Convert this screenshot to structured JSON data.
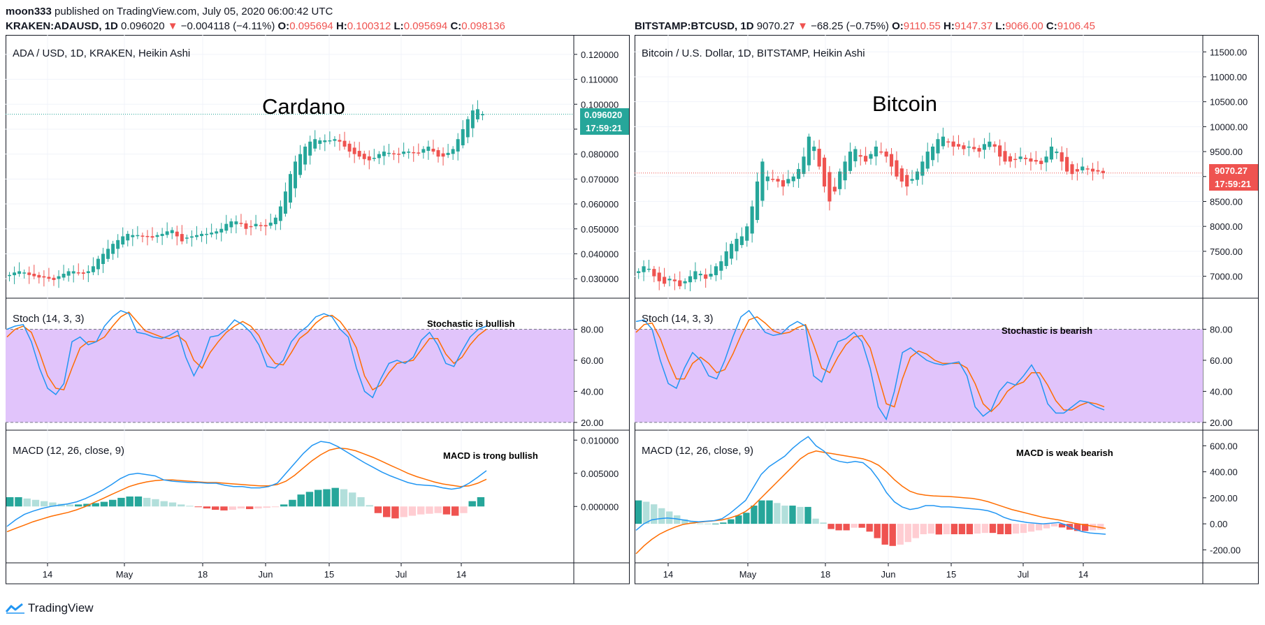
{
  "header": {
    "author": "moon333",
    "published": "published on TradingView.com, July 05, 2020 06:00:42 UTC"
  },
  "footer": {
    "brand": "TradingView"
  },
  "colors": {
    "up": "#26a69a",
    "down": "#ef5350",
    "stoch_k": "#2196f3",
    "stoch_d": "#ff6d00",
    "stoch_band": "#e1c4fb",
    "hist_up_strong": "#26a69a",
    "hist_up_weak": "#b2dfdb",
    "hist_down_strong": "#ef5350",
    "hist_down_weak": "#ffcdd2"
  },
  "charts": [
    {
      "ticker_line": {
        "symbol": "KRAKEN:ADAUSD, 1D",
        "last": "0.096020",
        "change": "−0.004118 (−4.11%)",
        "o_label": "O:",
        "o": "0.095694",
        "h_label": "H:",
        "h": "0.100312",
        "l_label": "L:",
        "l": "0.095694",
        "c_label": "C:",
        "c": "0.098136"
      },
      "chart_title": "ADA / USD, 1D, KRAKEN, Heikin Ashi",
      "annotation": "Cardano",
      "price_badge": "0.096020",
      "countdown": "17:59:21",
      "stoch_label": "Stoch (14, 3, 3)",
      "stoch_note": "Stochastic is bullish",
      "macd_label": "MACD (12, 26, close, 9)",
      "macd_note": "MACD is trong bullish",
      "x_ticks": [
        "14",
        "May",
        "18",
        "Jun",
        "15",
        "Jul",
        "14"
      ]
    },
    {
      "ticker_line": {
        "symbol": "BITSTAMP:BTCUSD, 1D",
        "last": "9070.27",
        "change": "−68.25 (−0.75%)",
        "o_label": "O:",
        "o": "9110.55",
        "h_label": "H:",
        "h": "9147.37",
        "l_label": "L:",
        "l": "9066.00",
        "c_label": "C:",
        "c": "9106.45"
      },
      "chart_title": "Bitcoin / U.S. Dollar, 1D, BITSTAMP, Heikin Ashi",
      "annotation": "Bitcoin",
      "price_badge": "9070.27",
      "countdown": "17:59:21",
      "stoch_label": "Stoch (14, 3, 3)",
      "stoch_note": "Stochastic is bearish",
      "macd_label": "MACD (12, 26, close, 9)",
      "macd_note": "MACD is weak bearish",
      "x_ticks": [
        "14",
        "May",
        "18",
        "Jun",
        "15",
        "Jul",
        "14"
      ]
    }
  ],
  "chart_data": [
    {
      "type": "candlestick",
      "panel": "price",
      "ylim": [
        0.025,
        0.125
      ],
      "y_ticks": [
        "0.030000",
        "0.040000",
        "0.050000",
        "0.060000",
        "0.070000",
        "0.080000",
        "0.090000",
        "0.100000",
        "0.110000",
        "0.120000"
      ],
      "current_price": 0.09602,
      "close": [
        0.0315,
        0.0325,
        0.033,
        0.0325,
        0.0315,
        0.031,
        0.0305,
        0.0305,
        0.03,
        0.0295,
        0.031,
        0.032,
        0.033,
        0.033,
        0.0325,
        0.032,
        0.033,
        0.035,
        0.038,
        0.04,
        0.042,
        0.044,
        0.0455,
        0.047,
        0.048,
        0.0475,
        0.0475,
        0.047,
        0.047,
        0.0465,
        0.0475,
        0.048,
        0.049,
        0.0495,
        0.047,
        0.045,
        0.0465,
        0.047,
        0.0475,
        0.048,
        0.048,
        0.0485,
        0.049,
        0.05,
        0.052,
        0.053,
        0.053,
        0.052,
        0.05,
        0.051,
        0.052,
        0.0515,
        0.051,
        0.0525,
        0.0545,
        0.059,
        0.065,
        0.072,
        0.077,
        0.08,
        0.083,
        0.085,
        0.086,
        0.0855,
        0.0855,
        0.0855,
        0.086,
        0.085,
        0.083,
        0.081,
        0.08,
        0.079,
        0.078,
        0.0775,
        0.0785,
        0.08,
        0.081,
        0.0805,
        0.08,
        0.08,
        0.081,
        0.081,
        0.0805,
        0.0805,
        0.082,
        0.083,
        0.081,
        0.079,
        0.079,
        0.0805,
        0.082,
        0.086,
        0.09,
        0.094,
        0.0975,
        0.098,
        0.096
      ],
      "stoch": {
        "ylim": [
          15,
          100
        ],
        "bands": [
          20,
          80
        ],
        "y_ticks": [
          "20.00",
          "40.00",
          "60.00",
          "80.00"
        ],
        "k": [
          80,
          82,
          83,
          72,
          55,
          42,
          38,
          45,
          72,
          75,
          70,
          72,
          82,
          88,
          92,
          90,
          78,
          77,
          75,
          74,
          76,
          79,
          62,
          50,
          60,
          75,
          76,
          80,
          86,
          83,
          78,
          70,
          56,
          55,
          60,
          72,
          78,
          82,
          88,
          90,
          88,
          80,
          75,
          55,
          40,
          36,
          48,
          58,
          60,
          58,
          62,
          73,
          78,
          70,
          58,
          56,
          66,
          75,
          80,
          82
        ],
        "d": [
          75,
          80,
          82,
          78,
          65,
          50,
          42,
          41,
          55,
          68,
          72,
          72,
          75,
          82,
          88,
          91,
          85,
          79,
          77,
          75,
          74,
          76,
          72,
          60,
          55,
          65,
          72,
          78,
          82,
          85,
          82,
          76,
          65,
          58,
          57,
          65,
          74,
          78,
          84,
          88,
          89,
          85,
          78,
          68,
          50,
          41,
          44,
          52,
          58,
          59,
          60,
          67,
          74,
          74,
          64,
          58,
          62,
          70,
          76,
          80
        ]
      },
      "macd": {
        "ylim": [
          -0.0085,
          0.0115
        ],
        "y_ticks": [
          "0.000000",
          "0.005000",
          "0.010000"
        ],
        "macd": [
          -0.003,
          -0.002,
          -0.0012,
          -0.0007,
          -0.0003,
          0.0,
          0.0002,
          0.0004,
          0.0007,
          0.0012,
          0.0018,
          0.0025,
          0.0033,
          0.0042,
          0.0048,
          0.005,
          0.0048,
          0.0046,
          0.004,
          0.0038,
          0.0037,
          0.0036,
          0.0036,
          0.0035,
          0.0035,
          0.0032,
          0.003,
          0.003,
          0.0028,
          0.0028,
          0.003,
          0.0035,
          0.005,
          0.0065,
          0.008,
          0.0092,
          0.0098,
          0.0096,
          0.009,
          0.0082,
          0.0074,
          0.0066,
          0.0059,
          0.0052,
          0.0046,
          0.0041,
          0.0036,
          0.0033,
          0.0032,
          0.0031,
          0.0028,
          0.0026,
          0.0028,
          0.0035,
          0.0044,
          0.0054
        ],
        "signal": [
          -0.0038,
          -0.0033,
          -0.0028,
          -0.0023,
          -0.0019,
          -0.0015,
          -0.0012,
          -0.0009,
          -0.0005,
          0.0,
          0.0006,
          0.0012,
          0.0018,
          0.0024,
          0.003,
          0.0034,
          0.0037,
          0.0039,
          0.004,
          0.004,
          0.0039,
          0.0038,
          0.0037,
          0.0036,
          0.0036,
          0.0035,
          0.0034,
          0.0033,
          0.0032,
          0.0031,
          0.0031,
          0.0033,
          0.0038,
          0.0047,
          0.0058,
          0.0069,
          0.0078,
          0.0085,
          0.0088,
          0.0087,
          0.0084,
          0.0079,
          0.0074,
          0.0068,
          0.0062,
          0.0056,
          0.005,
          0.0045,
          0.0041,
          0.0037,
          0.0034,
          0.0032,
          0.003,
          0.0031,
          0.0035,
          0.0041
        ],
        "hist": [
          0.0014,
          0.0014,
          0.0012,
          0.001,
          0.0008,
          0.0006,
          0.0004,
          0.0003,
          0.0003,
          0.0004,
          0.0005,
          0.0007,
          0.001,
          0.0013,
          0.0015,
          0.0015,
          0.0013,
          0.0011,
          0.0008,
          0.0006,
          0.0003,
          0.0001,
          -0.0001,
          -0.0003,
          -0.0005,
          -0.0006,
          -0.0005,
          -0.0003,
          -0.0004,
          -0.0003,
          -0.0002,
          -0.0001,
          0.0003,
          0.001,
          0.0018,
          0.0022,
          0.0025,
          0.0026,
          0.0028,
          0.0026,
          0.0021,
          0.0014,
          0.0002,
          -0.001,
          -0.0016,
          -0.0018,
          -0.0016,
          -0.0014,
          -0.0012,
          -0.0011,
          -0.001,
          -0.0012,
          -0.0014,
          -0.001,
          0.0008,
          0.0014
        ]
      }
    },
    {
      "type": "candlestick",
      "panel": "price",
      "ylim": [
        6700,
        11700
      ],
      "y_ticks": [
        "7000.00",
        "7500.00",
        "8000.00",
        "8500.00",
        "9000.00",
        "9500.00",
        "10000.00",
        "10500.00",
        "11000.00",
        "11500.00"
      ],
      "current_price": 9070.27,
      "close": [
        7100,
        7200,
        7150,
        7000,
        6900,
        6850,
        6950,
        6900,
        6800,
        6900,
        7000,
        7100,
        7050,
        6950,
        7050,
        7200,
        7300,
        7500,
        7650,
        7750,
        7800,
        8000,
        8400,
        8900,
        9300,
        9000,
        8950,
        8900,
        8800,
        8950,
        9000,
        9150,
        9400,
        9800,
        9600,
        9200,
        8800,
        8500,
        8700,
        9100,
        9300,
        9500,
        9550,
        9400,
        9300,
        9450,
        9600,
        9500,
        9400,
        9200,
        9000,
        8900,
        8800,
        8950,
        9100,
        9300,
        9500,
        9600,
        9750,
        9800,
        9700,
        9600,
        9600,
        9550,
        9600,
        9550,
        9500,
        9650,
        9700,
        9600,
        9400,
        9300,
        9300,
        9350,
        9400,
        9350,
        9300,
        9300,
        9250,
        9400,
        9600,
        9500,
        9300,
        9100,
        9050,
        9100,
        9200,
        9150,
        9100,
        9100,
        9070
      ],
      "stoch": {
        "ylim": [
          15,
          100
        ],
        "bands": [
          20,
          80
        ],
        "y_ticks": [
          "20.00",
          "40.00",
          "60.00",
          "80.00"
        ],
        "k": [
          85,
          86,
          80,
          60,
          45,
          42,
          55,
          65,
          60,
          50,
          48,
          60,
          75,
          88,
          92,
          85,
          78,
          76,
          77,
          82,
          85,
          82,
          50,
          46,
          60,
          72,
          74,
          78,
          72,
          55,
          30,
          22,
          40,
          65,
          68,
          64,
          60,
          58,
          57,
          58,
          59,
          50,
          30,
          24,
          28,
          40,
          46,
          44,
          50,
          57,
          48,
          32,
          26,
          26,
          30,
          34,
          33,
          30,
          28
        ],
        "d": [
          78,
          83,
          84,
          74,
          60,
          48,
          48,
          58,
          62,
          58,
          52,
          54,
          64,
          76,
          86,
          88,
          84,
          79,
          77,
          78,
          81,
          83,
          70,
          55,
          52,
          62,
          70,
          75,
          76,
          68,
          50,
          32,
          30,
          48,
          62,
          66,
          64,
          60,
          58,
          58,
          58,
          55,
          45,
          32,
          27,
          32,
          40,
          44,
          46,
          52,
          52,
          44,
          34,
          28,
          28,
          31,
          33,
          32,
          30
        ]
      },
      "macd": {
        "ylim": [
          -300,
          720
        ],
        "y_ticks": [
          "-200.00",
          "0.00",
          "200.00",
          "400.00",
          "600.00"
        ],
        "macd": [
          -50,
          0,
          30,
          40,
          45,
          40,
          30,
          20,
          15,
          20,
          25,
          40,
          80,
          130,
          180,
          280,
          380,
          440,
          480,
          520,
          580,
          630,
          670,
          600,
          560,
          500,
          480,
          470,
          480,
          470,
          420,
          340,
          240,
          170,
          130,
          110,
          120,
          140,
          140,
          130,
          130,
          125,
          120,
          115,
          110,
          100,
          80,
          50,
          30,
          20,
          10,
          5,
          0,
          5,
          10,
          -10,
          -40,
          -60,
          -70,
          -75,
          -80
        ],
        "signal": [
          -230,
          -170,
          -120,
          -80,
          -50,
          -25,
          -5,
          5,
          12,
          18,
          23,
          30,
          45,
          65,
          95,
          140,
          200,
          260,
          320,
          380,
          440,
          500,
          540,
          560,
          550,
          540,
          530,
          520,
          510,
          500,
          480,
          450,
          400,
          340,
          290,
          250,
          230,
          220,
          215,
          212,
          210,
          205,
          200,
          195,
          185,
          170,
          150,
          130,
          110,
          95,
          80,
          65,
          50,
          40,
          30,
          18,
          5,
          -5,
          -15,
          -25,
          -35
        ],
        "hist": [
          180,
          170,
          150,
          120,
          95,
          65,
          35,
          15,
          3,
          2,
          2,
          10,
          35,
          65,
          85,
          140,
          180,
          180,
          160,
          140,
          140,
          130,
          130,
          40,
          10,
          -40,
          -50,
          -50,
          -30,
          -30,
          -60,
          -110,
          -160,
          -170,
          -160,
          -140,
          -110,
          -80,
          -75,
          -82,
          -80,
          -80,
          -80,
          -80,
          -75,
          -70,
          -70,
          -80,
          -80,
          -75,
          -70,
          -60,
          -50,
          -35,
          -20,
          -28,
          -45,
          -55,
          -55,
          -50,
          -45
        ]
      }
    }
  ]
}
